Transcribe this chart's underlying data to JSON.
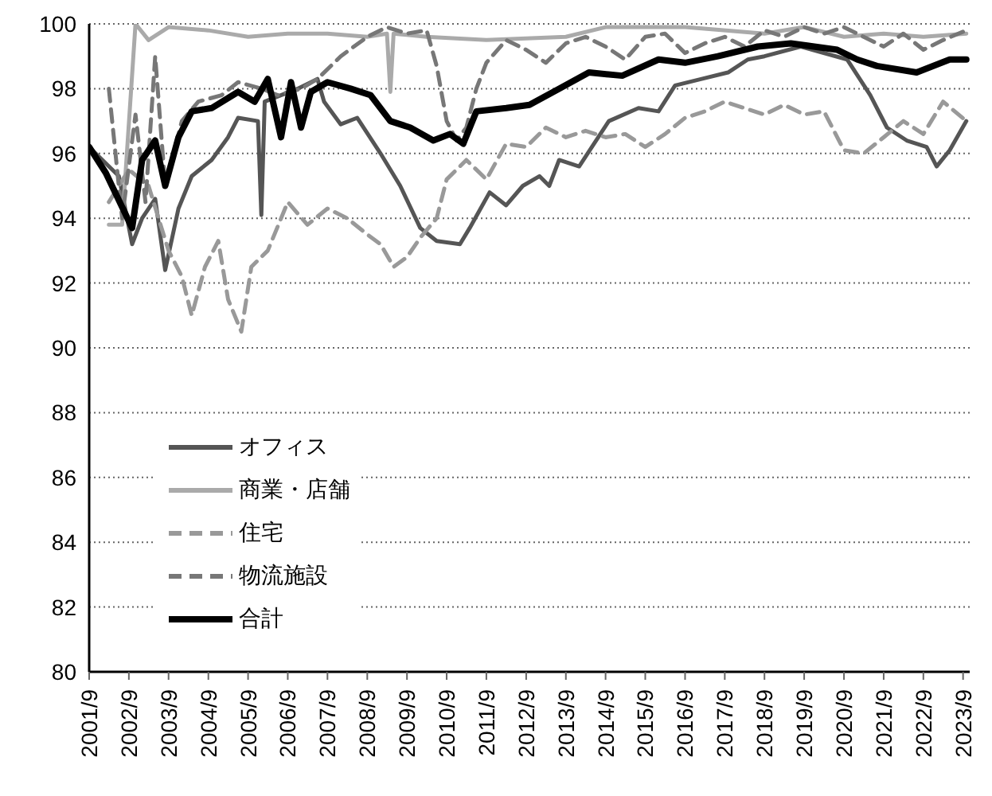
{
  "chart_data": {
    "type": "line",
    "xlim": [
      "2001-09",
      "2023-11"
    ],
    "xticks": [
      {
        "value": "2001-09",
        "label": "2001/9"
      },
      {
        "value": "2002-09",
        "label": "2002/9"
      },
      {
        "value": "2003-09",
        "label": "2003/9"
      },
      {
        "value": "2004-09",
        "label": "2004/9"
      },
      {
        "value": "2005-09",
        "label": "2005/9"
      },
      {
        "value": "2006-09",
        "label": "2006/9"
      },
      {
        "value": "2007-09",
        "label": "2007/9"
      },
      {
        "value": "2008-09",
        "label": "2008/9"
      },
      {
        "value": "2009-09",
        "label": "2009/9"
      },
      {
        "value": "2010-09",
        "label": "2010/9"
      },
      {
        "value": "2011-09",
        "label": "2011/9"
      },
      {
        "value": "2012-09",
        "label": "2012/9"
      },
      {
        "value": "2013-09",
        "label": "2013/9"
      },
      {
        "value": "2014-09",
        "label": "2014/9"
      },
      {
        "value": "2015-09",
        "label": "2015/9"
      },
      {
        "value": "2016-09",
        "label": "2016/9"
      },
      {
        "value": "2017-09",
        "label": "2017/9"
      },
      {
        "value": "2018-09",
        "label": "2018/9"
      },
      {
        "value": "2019-09",
        "label": "2019/9"
      },
      {
        "value": "2020-09",
        "label": "2020/9"
      },
      {
        "value": "2021-09",
        "label": "2021/9"
      },
      {
        "value": "2022-09",
        "label": "2022/9"
      },
      {
        "value": "2023-09",
        "label": "2023/9"
      }
    ],
    "ylim": [
      80,
      100
    ],
    "yticks": [
      80,
      82,
      84,
      86,
      88,
      90,
      92,
      94,
      96,
      98,
      100
    ],
    "grid": "y",
    "legend": "bottom left",
    "marker": "none",
    "series": [
      {
        "name": "オフィス",
        "color": "#555555",
        "line_style": "solid",
        "x": [
          "2001-09",
          "2002-06",
          "2002-10",
          "2003-01",
          "2003-05",
          "2003-08",
          "2003-12",
          "2004-04",
          "2004-10",
          "2005-03",
          "2005-06",
          "2005-12",
          "2006-01",
          "2006-02",
          "2006-12",
          "2007-06",
          "2007-08",
          "2008-01",
          "2008-06",
          "2009-01",
          "2009-07",
          "2010-01",
          "2010-06",
          "2011-01",
          "2011-04",
          "2011-10",
          "2012-03",
          "2012-08",
          "2013-01",
          "2013-04",
          "2013-07",
          "2014-01",
          "2014-10",
          "2015-07",
          "2016-01",
          "2016-06",
          "2017-02",
          "2017-10",
          "2018-04",
          "2018-09",
          "2019-08",
          "2020-10",
          "2021-05",
          "2021-10",
          "2022-04",
          "2022-10",
          "2023-01",
          "2023-05",
          "2023-10"
        ],
        "values": [
          96.2,
          95.3,
          93.2,
          94.0,
          94.6,
          92.4,
          94.3,
          95.3,
          95.8,
          96.5,
          97.1,
          97.0,
          94.1,
          97.6,
          98.0,
          98.3,
          97.6,
          96.9,
          97.1,
          96.0,
          95.0,
          93.7,
          93.3,
          93.2,
          93.7,
          94.8,
          94.4,
          95.0,
          95.3,
          95.0,
          95.8,
          95.6,
          97.0,
          97.4,
          97.3,
          98.1,
          98.3,
          98.5,
          98.9,
          99.0,
          99.3,
          98.9,
          97.8,
          96.8,
          96.4,
          96.2,
          95.6,
          96.1,
          97.0
        ]
      },
      {
        "name": "商業・店舗",
        "color": "#aaaaaa",
        "line_style": "solid",
        "x": [
          "2002-03",
          "2002-07",
          "2002-11",
          "2003-03",
          "2003-09",
          "2004-09",
          "2005-09",
          "2006-09",
          "2007-09",
          "2008-09",
          "2009-03",
          "2009-04",
          "2009-05",
          "2010-03",
          "2011-09",
          "2013-09",
          "2014-09",
          "2016-09",
          "2018-09",
          "2019-09",
          "2020-09",
          "2021-09",
          "2022-09",
          "2023-10"
        ],
        "values": [
          93.8,
          93.8,
          100.0,
          99.5,
          99.9,
          99.8,
          99.6,
          99.7,
          99.7,
          99.6,
          99.7,
          97.9,
          99.7,
          99.6,
          99.5,
          99.6,
          99.9,
          99.9,
          99.7,
          99.9,
          99.6,
          99.7,
          99.6,
          99.7
        ]
      },
      {
        "name": "住宅",
        "color": "#999999",
        "line_style": "dashed",
        "x": [
          "2002-03",
          "2002-09",
          "2003-03",
          "2003-09",
          "2004-01",
          "2004-04",
          "2004-08",
          "2004-12",
          "2005-03",
          "2005-07",
          "2005-10",
          "2006-03",
          "2006-09",
          "2007-03",
          "2007-09",
          "2008-03",
          "2008-09",
          "2009-01",
          "2009-05",
          "2009-09",
          "2010-01",
          "2010-06",
          "2010-09",
          "2011-03",
          "2011-09",
          "2012-03",
          "2012-09",
          "2013-03",
          "2013-09",
          "2014-03",
          "2014-09",
          "2015-03",
          "2015-09",
          "2016-03",
          "2016-09",
          "2017-03",
          "2017-09",
          "2018-03",
          "2018-09",
          "2019-03",
          "2019-09",
          "2020-03",
          "2020-09",
          "2021-03",
          "2021-09",
          "2022-03",
          "2022-09",
          "2023-03",
          "2023-10"
        ],
        "values": [
          94.5,
          95.5,
          95.0,
          93.0,
          92.2,
          91.0,
          92.5,
          93.3,
          91.5,
          90.5,
          92.5,
          93.0,
          94.5,
          93.8,
          94.3,
          94.0,
          93.5,
          93.2,
          92.5,
          92.8,
          93.4,
          94.0,
          95.2,
          95.8,
          95.2,
          96.3,
          96.2,
          96.8,
          96.5,
          96.7,
          96.5,
          96.6,
          96.2,
          96.6,
          97.1,
          97.3,
          97.6,
          97.4,
          97.2,
          97.5,
          97.2,
          97.3,
          96.1,
          96.0,
          96.5,
          97.0,
          96.6,
          97.6,
          97.0
        ]
      },
      {
        "name": "物流施設",
        "color": "#777777",
        "line_style": "dashed",
        "x": [
          "2002-03",
          "2002-07",
          "2002-11",
          "2003-02",
          "2003-05",
          "2003-08",
          "2004-01",
          "2004-06",
          "2005-01",
          "2005-06",
          "2006-01",
          "2006-06",
          "2007-01",
          "2007-06",
          "2008-01",
          "2008-09",
          "2009-03",
          "2009-09",
          "2010-03",
          "2010-06",
          "2010-09",
          "2010-12",
          "2011-03",
          "2011-06",
          "2011-09",
          "2012-03",
          "2012-09",
          "2013-03",
          "2013-09",
          "2014-03",
          "2014-09",
          "2015-03",
          "2015-09",
          "2016-03",
          "2016-09",
          "2017-03",
          "2017-09",
          "2018-03",
          "2018-09",
          "2019-03",
          "2019-09",
          "2020-03",
          "2020-09",
          "2021-03",
          "2021-09",
          "2022-03",
          "2022-09",
          "2023-03",
          "2023-10"
        ],
        "values": [
          98.0,
          94.0,
          97.2,
          94.5,
          99.0,
          95.0,
          97.0,
          97.6,
          97.8,
          98.2,
          98.0,
          97.8,
          98.0,
          98.3,
          99.0,
          99.6,
          99.9,
          99.7,
          99.8,
          98.7,
          97.0,
          96.4,
          96.8,
          98.0,
          98.8,
          99.5,
          99.2,
          98.8,
          99.4,
          99.6,
          99.3,
          98.9,
          99.6,
          99.7,
          99.1,
          99.4,
          99.6,
          99.3,
          99.8,
          99.6,
          99.9,
          99.7,
          99.9,
          99.6,
          99.3,
          99.7,
          99.2,
          99.5,
          99.8
        ]
      },
      {
        "name": "合計",
        "color": "#000000",
        "line_style": "solid",
        "x": [
          "2001-09",
          "2002-02",
          "2002-10",
          "2003-01",
          "2003-05",
          "2003-08",
          "2003-12",
          "2004-04",
          "2004-10",
          "2005-06",
          "2005-11",
          "2006-03",
          "2006-07",
          "2006-10",
          "2007-01",
          "2007-04",
          "2007-09",
          "2008-04",
          "2008-10",
          "2009-04",
          "2009-10",
          "2010-05",
          "2010-10",
          "2011-02",
          "2011-06",
          "2012-03",
          "2012-10",
          "2013-07",
          "2014-04",
          "2015-02",
          "2016-01",
          "2016-09",
          "2017-07",
          "2018-07",
          "2019-05",
          "2020-07",
          "2021-01",
          "2021-07",
          "2022-07",
          "2023-05",
          "2023-10"
        ],
        "values": [
          96.2,
          95.4,
          93.7,
          95.8,
          96.4,
          95.0,
          96.5,
          97.3,
          97.4,
          97.9,
          97.6,
          98.3,
          96.5,
          98.2,
          96.8,
          97.9,
          98.2,
          98.0,
          97.8,
          97.0,
          96.8,
          96.4,
          96.6,
          96.3,
          97.3,
          97.4,
          97.5,
          98.0,
          98.5,
          98.4,
          98.9,
          98.8,
          99.0,
          99.3,
          99.4,
          99.2,
          98.9,
          98.7,
          98.5,
          98.9,
          98.9
        ]
      }
    ]
  }
}
